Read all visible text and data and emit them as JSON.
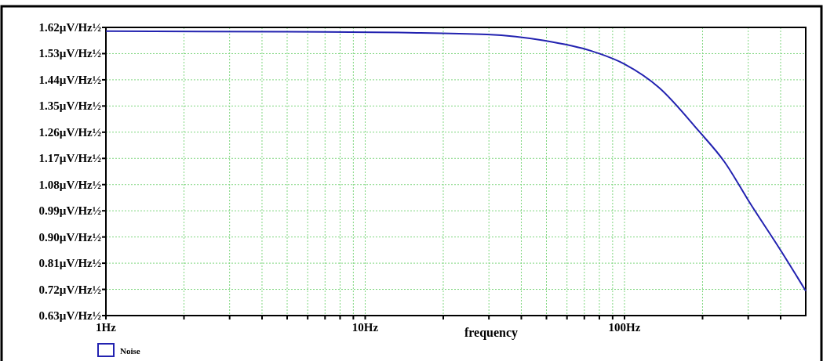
{
  "chart_data": {
    "type": "line",
    "xlabel": "frequency",
    "log": "x",
    "grid": true,
    "legend": "bottom left",
    "marker": "none",
    "line_style": "solid",
    "xlim": [
      1,
      500
    ],
    "ylim": [
      0.63,
      1.62
    ],
    "xticks": [
      {
        "value": 1,
        "label": "1Hz"
      },
      {
        "value": 2,
        "label": null
      },
      {
        "value": 3,
        "label": null
      },
      {
        "value": 4,
        "label": null
      },
      {
        "value": 5,
        "label": null
      },
      {
        "value": 6,
        "label": null
      },
      {
        "value": 7,
        "label": null
      },
      {
        "value": 8,
        "label": null
      },
      {
        "value": 9,
        "label": null
      },
      {
        "value": 10,
        "label": "10Hz"
      },
      {
        "value": 20,
        "label": null
      },
      {
        "value": 30,
        "label": null
      },
      {
        "value": 40,
        "label": null
      },
      {
        "value": 50,
        "label": null
      },
      {
        "value": 60,
        "label": null
      },
      {
        "value": 70,
        "label": null
      },
      {
        "value": 80,
        "label": null
      },
      {
        "value": 90,
        "label": null
      },
      {
        "value": 100,
        "label": "100Hz"
      },
      {
        "value": 200,
        "label": null
      },
      {
        "value": 300,
        "label": null
      },
      {
        "value": 400,
        "label": null
      }
    ],
    "yticks": [
      {
        "value": 0.63,
        "label": "0.63µV/Hz½"
      },
      {
        "value": 0.72,
        "label": "0.72µV/Hz½"
      },
      {
        "value": 0.81,
        "label": "0.81µV/Hz½"
      },
      {
        "value": 0.9,
        "label": "0.90µV/Hz½"
      },
      {
        "value": 0.99,
        "label": "0.99µV/Hz½"
      },
      {
        "value": 1.08,
        "label": "1.08µV/Hz½"
      },
      {
        "value": 1.17,
        "label": "1.17µV/Hz½"
      },
      {
        "value": 1.26,
        "label": "1.26µV/Hz½"
      },
      {
        "value": 1.35,
        "label": "1.35µV/Hz½"
      },
      {
        "value": 1.44,
        "label": "1.44µV/Hz½"
      },
      {
        "value": 1.53,
        "label": "1.53µV/Hz½"
      },
      {
        "value": 1.62,
        "label": "1.62µV/Hz½"
      }
    ],
    "x": [
      1,
      5,
      14.7,
      29.5,
      49,
      74.6,
      100,
      136,
      193,
      243,
      306,
      395,
      500
    ],
    "series": [
      {
        "name": "Noise",
        "color": "#2222b0",
        "values": [
          1.607,
          1.605,
          1.602,
          1.596,
          1.575,
          1.539,
          1.494,
          1.413,
          1.265,
          1.158,
          1.014,
          0.862,
          0.715
        ]
      }
    ]
  }
}
